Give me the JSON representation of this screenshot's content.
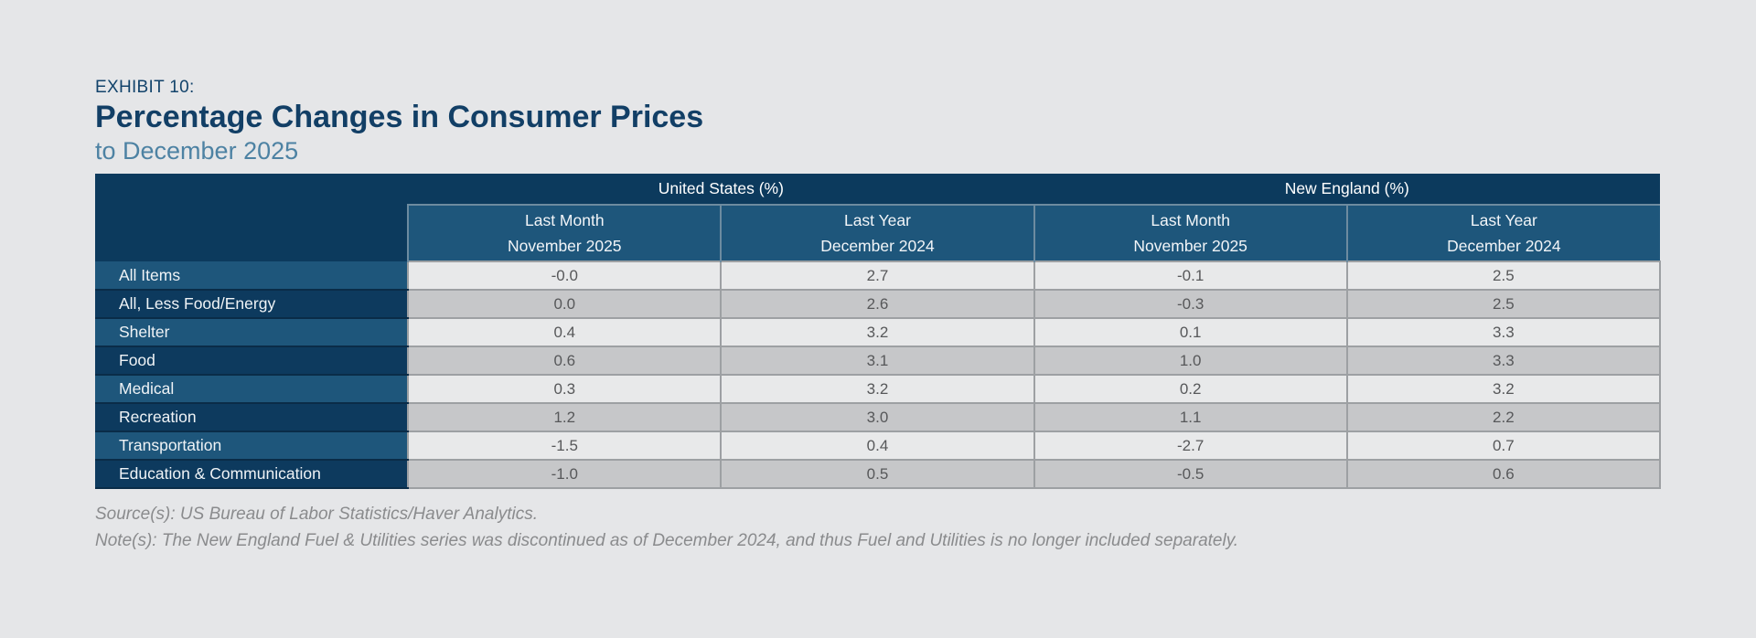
{
  "header": {
    "exhibit_label": "EXHIBIT 10:",
    "title": "Percentage Changes in Consumer Prices",
    "subtitle": "to December 2025"
  },
  "table": {
    "group_headers": [
      {
        "label": "United States (%)"
      },
      {
        "label": "New England (%)"
      }
    ],
    "column_headers": [
      {
        "line1": "Last Month",
        "line2": "November 2025"
      },
      {
        "line1": "Last Year",
        "line2": "December 2024"
      },
      {
        "line1": "Last Month",
        "line2": "November 2025"
      },
      {
        "line1": "Last Year",
        "line2": "December 2024"
      }
    ],
    "rows": [
      {
        "label": "All Items",
        "values": [
          "-0.0",
          "2.7",
          "-0.1",
          "2.5"
        ]
      },
      {
        "label": "All, Less Food/Energy",
        "values": [
          "0.0",
          "2.6",
          "-0.3",
          "2.5"
        ]
      },
      {
        "label": "Shelter",
        "values": [
          "0.4",
          "3.2",
          "0.1",
          "3.3"
        ]
      },
      {
        "label": "Food",
        "values": [
          "0.6",
          "3.1",
          "1.0",
          "3.3"
        ]
      },
      {
        "label": "Medical",
        "values": [
          "0.3",
          "3.2",
          "0.2",
          "3.2"
        ]
      },
      {
        "label": "Recreation",
        "values": [
          "1.2",
          "3.0",
          "1.1",
          "2.2"
        ]
      },
      {
        "label": "Transportation",
        "values": [
          "-1.5",
          "0.4",
          "-2.7",
          "0.7"
        ]
      },
      {
        "label": "Education & Communication",
        "values": [
          "-1.0",
          "0.5",
          "-0.5",
          "0.6"
        ]
      }
    ]
  },
  "footer": {
    "source": "Source(s): US Bureau of Labor Statistics/Haver Analytics.",
    "note": "Note(s): The New England Fuel & Utilities series was discontinued as of December 2024, and thus Fuel and Utilities is no longer included separately."
  },
  "colors": {
    "page_background": "#e5e6e8",
    "navy_header": "#0c3a5d",
    "blue_header": "#1e567b",
    "title_navy": "#123f66",
    "subtitle_blue": "#4d82a3",
    "row_light_gray": "#e8e9ea",
    "row_dark_gray": "#c6c7c9",
    "value_text": "#57585a"
  },
  "chart_data": {
    "type": "table",
    "title": "Percentage Changes in Consumer Prices to December 2025",
    "column_groups": [
      "United States (%)",
      "New England (%)"
    ],
    "categories": [
      "All Items",
      "All, Less Food/Energy",
      "Shelter",
      "Food",
      "Medical",
      "Recreation",
      "Transportation",
      "Education & Communication"
    ],
    "series": [
      {
        "name": "United States Last Month (November 2025)",
        "values": [
          -0.0,
          0.0,
          0.4,
          0.6,
          0.3,
          1.2,
          -1.5,
          -1.0
        ]
      },
      {
        "name": "United States Last Year (December 2024)",
        "values": [
          2.7,
          2.6,
          3.2,
          3.1,
          3.2,
          3.0,
          0.4,
          0.5
        ]
      },
      {
        "name": "New England Last Month (November 2025)",
        "values": [
          -0.1,
          -0.3,
          0.1,
          1.0,
          0.2,
          1.1,
          -2.7,
          -0.5
        ]
      },
      {
        "name": "New England Last Year (December 2024)",
        "values": [
          2.5,
          2.5,
          3.3,
          3.3,
          3.2,
          2.2,
          0.7,
          0.6
        ]
      }
    ]
  }
}
